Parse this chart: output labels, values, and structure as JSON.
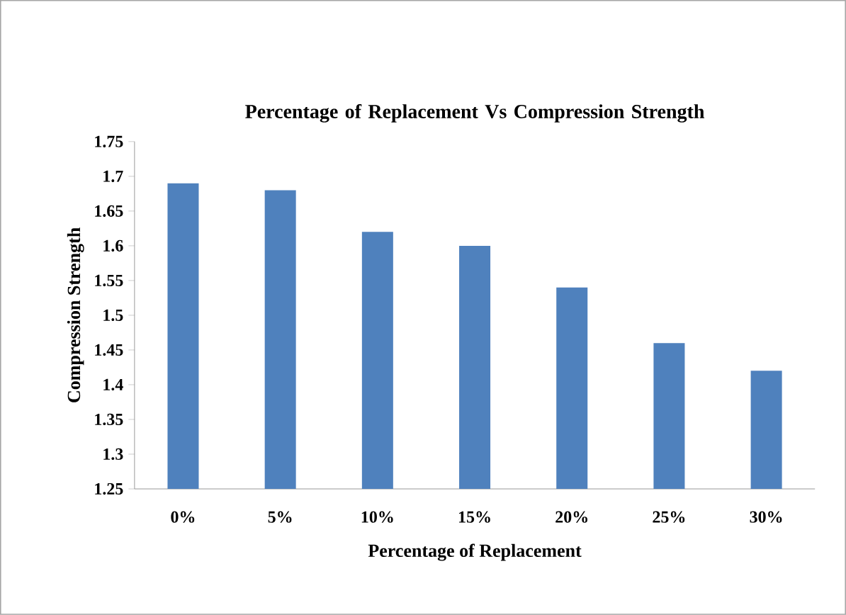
{
  "chart_data": {
    "type": "bar",
    "title": "Percentage of Replacement Vs Compression Strength",
    "xlabel": "Percentage of Replacement",
    "ylabel": "Compression Strength",
    "categories": [
      "0%",
      "5%",
      "10%",
      "15%",
      "20%",
      "25%",
      "30%"
    ],
    "values": [
      1.69,
      1.68,
      1.62,
      1.6,
      1.54,
      1.46,
      1.42
    ],
    "color": "#4f81bd",
    "ylim": [
      1.25,
      1.75
    ],
    "yticks": [
      1.25,
      1.3,
      1.35,
      1.4,
      1.45,
      1.5,
      1.55,
      1.6,
      1.65,
      1.7,
      1.75
    ]
  }
}
